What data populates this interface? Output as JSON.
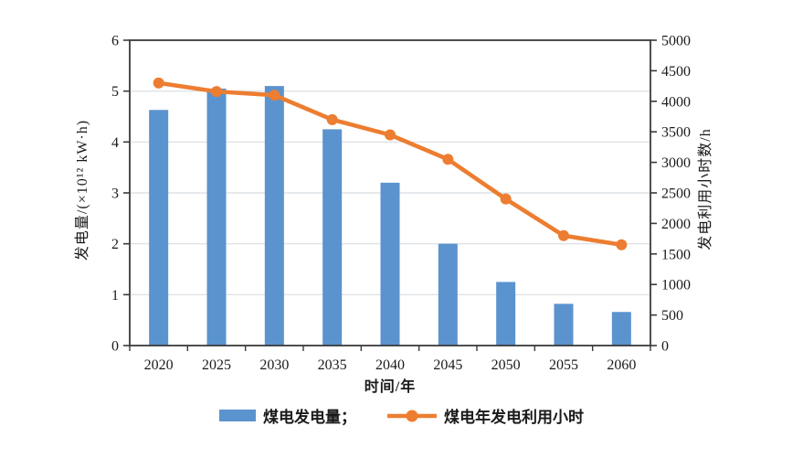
{
  "chart_data": {
    "type": "bar+line dual-axis combo",
    "categories": [
      "2020",
      "2025",
      "2030",
      "2035",
      "2040",
      "2045",
      "2050",
      "2055",
      "2060"
    ],
    "series": [
      {
        "name": "煤电发电量",
        "type": "bar",
        "axis": "left",
        "unit": "×10¹² kW·h",
        "values": [
          4.63,
          5.05,
          5.1,
          4.25,
          3.2,
          2.0,
          1.25,
          0.82,
          0.66
        ]
      },
      {
        "name": "煤电年发电利用小时",
        "type": "line",
        "axis": "right",
        "unit": "h",
        "values": [
          4300,
          4160,
          4100,
          3700,
          3450,
          3050,
          2400,
          1800,
          1650
        ]
      }
    ],
    "left_axis": {
      "label": "发电量/(×10¹² kW·h)",
      "min": 0,
      "max": 6,
      "step": 1,
      "ticks": [
        "0",
        "1",
        "2",
        "3",
        "4",
        "5",
        "6"
      ]
    },
    "right_axis": {
      "label": "发电利用小时数/h",
      "min": 0,
      "max": 5000,
      "step": 500,
      "ticks": [
        "0",
        "500",
        "1000",
        "1500",
        "2000",
        "2500",
        "3000",
        "3500",
        "4000",
        "4500",
        "5000"
      ]
    },
    "xlabel": "时间/年",
    "grid": "horizontal gridlines at left-axis values 1-5",
    "legend_position": "bottom",
    "colors": {
      "bar": "#5b93ce",
      "line": "#ed7d31",
      "grid": "#d8dde2",
      "axis": "#3a3a3a",
      "text": "#1a1a1a"
    }
  },
  "legend": {
    "items": [
      {
        "label": "煤电发电量；",
        "swatch": "bar"
      },
      {
        "label": "煤电年发电利用小时",
        "swatch": "line-marker"
      }
    ]
  }
}
